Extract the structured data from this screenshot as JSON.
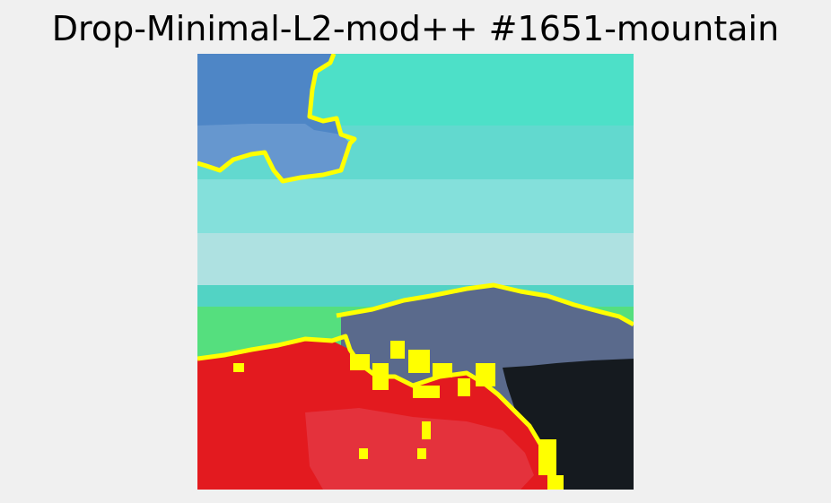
{
  "title": "Drop-Minimal-L2-mod++ #1651-mountain",
  "image": {
    "description_icon": "segmentation-overlay-image",
    "colors": {
      "sky_blue": "#4e86c6",
      "sky_light_blue": "#6697cf",
      "cyan_top": "#4de0c8",
      "cyan_mid": "#62d9cf",
      "cyan_light": "#84e0db",
      "pale_cyan": "#aee1e1",
      "mint": "#52d3c4",
      "green": "#55df7e",
      "slate": "#5a6a8c",
      "dark": "#151a1f",
      "red": "#e31a1f",
      "pink_red": "#e45060",
      "boundary_yellow": "#ffff00"
    }
  }
}
